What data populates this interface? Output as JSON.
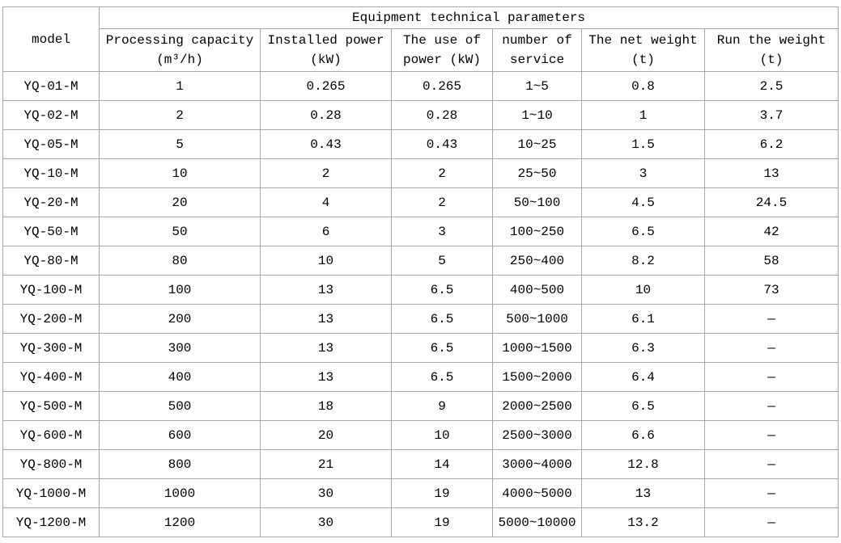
{
  "chart_data": {
    "type": "table",
    "title": "Equipment technical parameters",
    "header": {
      "model": "model",
      "columns": [
        {
          "line1": "Processing capacity",
          "line2": "(m³/h)"
        },
        {
          "line1": "Installed power",
          "line2": "(kW)"
        },
        {
          "line1": "The use of",
          "line2": "power (kW)"
        },
        {
          "line1": "number of",
          "line2": "service"
        },
        {
          "line1": "The net weight",
          "line2": "(t)"
        },
        {
          "line1": "Run the weight",
          "line2": "(t)"
        }
      ]
    },
    "rows": [
      [
        "YQ-01-M",
        "1",
        "0.265",
        "0.265",
        "1~5",
        "0.8",
        "2.5"
      ],
      [
        "YQ-02-M",
        "2",
        "0.28",
        "0.28",
        "1~10",
        "1",
        "3.7"
      ],
      [
        "YQ-05-M",
        "5",
        "0.43",
        "0.43",
        "10~25",
        "1.5",
        "6.2"
      ],
      [
        "YQ-10-M",
        "10",
        "2",
        "2",
        "25~50",
        "3",
        "13"
      ],
      [
        "YQ-20-M",
        "20",
        "4",
        "2",
        "50~100",
        "4.5",
        "24.5"
      ],
      [
        "YQ-50-M",
        "50",
        "6",
        "3",
        "100~250",
        "6.5",
        "42"
      ],
      [
        "YQ-80-M",
        "80",
        "10",
        "5",
        "250~400",
        "8.2",
        "58"
      ],
      [
        "YQ-100-M",
        "100",
        "13",
        "6.5",
        "400~500",
        "10",
        "73"
      ],
      [
        "YQ-200-M",
        "200",
        "13",
        "6.5",
        "500~1000",
        "6.1",
        "—"
      ],
      [
        "YQ-300-M",
        "300",
        "13",
        "6.5",
        "1000~1500",
        "6.3",
        "—"
      ],
      [
        "YQ-400-M",
        "400",
        "13",
        "6.5",
        "1500~2000",
        "6.4",
        "—"
      ],
      [
        "YQ-500-M",
        "500",
        "18",
        "9",
        "2000~2500",
        "6.5",
        "—"
      ],
      [
        "YQ-600-M",
        "600",
        "20",
        "10",
        "2500~3000",
        "6.6",
        "—"
      ],
      [
        "YQ-800-M",
        "800",
        "21",
        "14",
        "3000~4000",
        "12.8",
        "—"
      ],
      [
        "YQ-1000-M",
        "1000",
        "30",
        "19",
        "4000~5000",
        "13",
        "—"
      ],
      [
        "YQ-1200-M",
        "1200",
        "30",
        "19",
        "5000~10000",
        "13.2",
        "—"
      ]
    ]
  },
  "colors": {
    "border": "#a6a6a6",
    "text": "#000000",
    "background": "#ffffff"
  }
}
